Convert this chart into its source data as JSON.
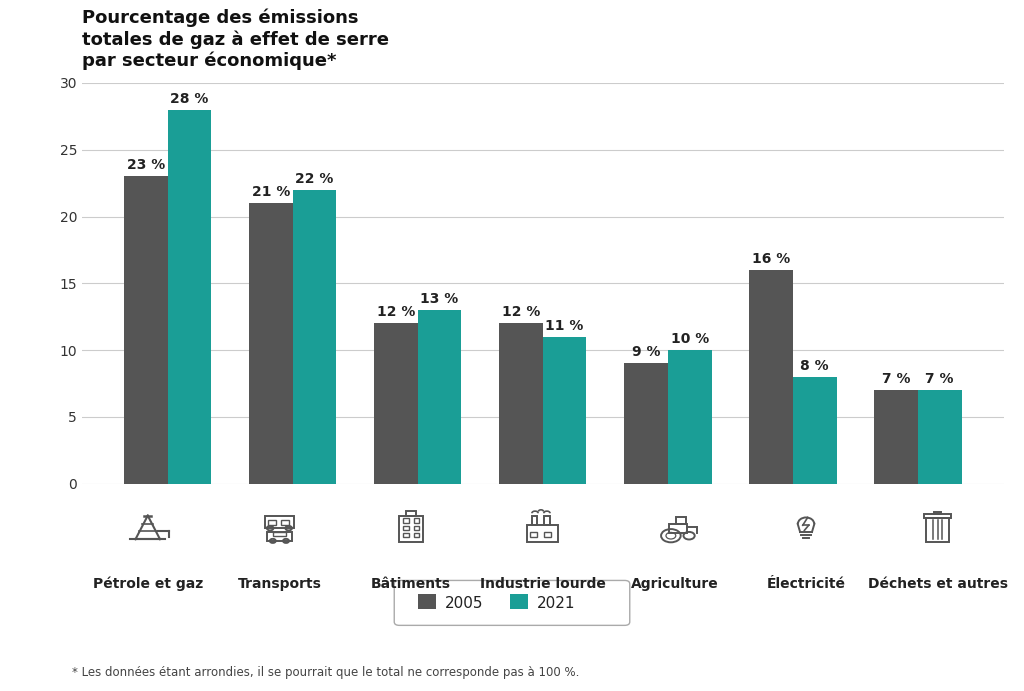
{
  "title": "Pourcentage des émissions\ntotales de gaz à effet de serre\npar secteur économique*",
  "categories": [
    "Pétrole et gaz",
    "Transports",
    "Bâtiments",
    "Industrie lourde",
    "Agriculture",
    "Électricité",
    "Déchets et autres"
  ],
  "values_2005": [
    23,
    21,
    12,
    12,
    9,
    16,
    7
  ],
  "values_2021": [
    28,
    22,
    13,
    11,
    10,
    8,
    7
  ],
  "color_2005": "#555555",
  "color_2021": "#1a9e96",
  "bar_width": 0.35,
  "ylim": [
    0,
    30
  ],
  "yticks": [
    0,
    5,
    10,
    15,
    20,
    25,
    30
  ],
  "background_color": "#ffffff",
  "grid_color": "#cccccc",
  "footnote": "* Les données étant arrondies, il se pourrait que le total ne corresponde pas à 100 %.",
  "legend_2005": "2005",
  "legend_2021": "2021",
  "title_fontsize": 13,
  "label_fontsize": 10,
  "tick_fontsize": 10,
  "value_fontsize": 10,
  "icon_color": "#555555"
}
